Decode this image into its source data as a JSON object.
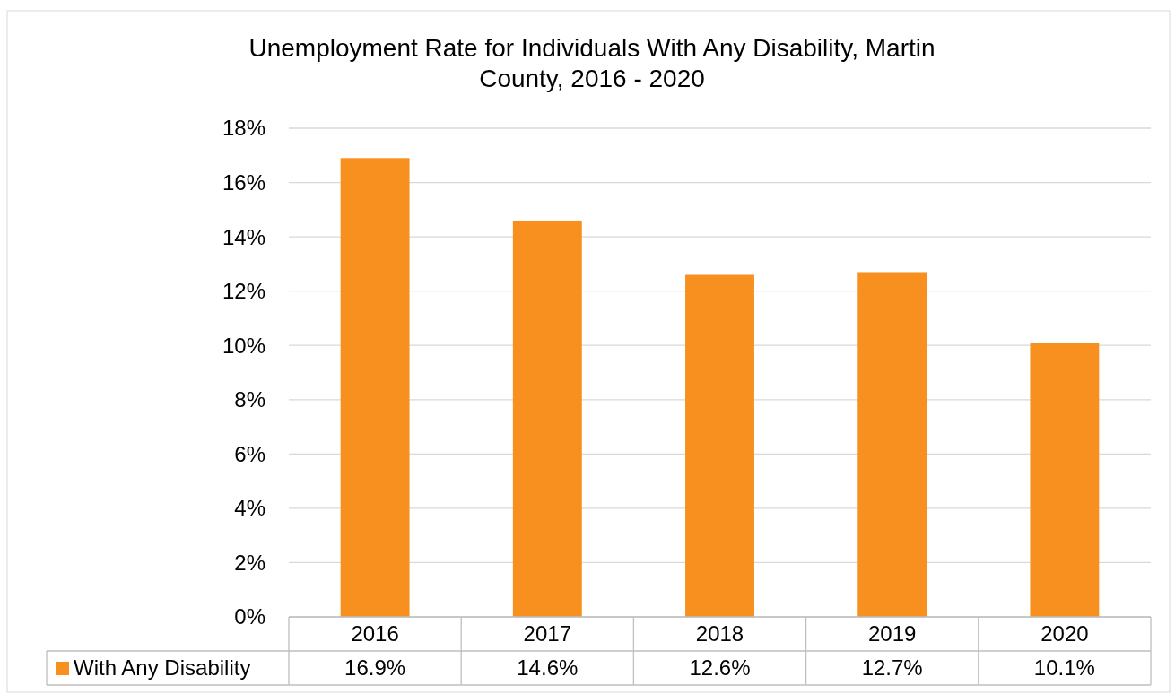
{
  "chart_data": {
    "type": "bar",
    "title": "Unemployment Rate for Individuals With Any Disability, Martin County, 2016 - 2020",
    "categories": [
      "2016",
      "2017",
      "2018",
      "2019",
      "2020"
    ],
    "series": [
      {
        "name": "With Any Disability",
        "color": "#f7901e",
        "values": [
          16.9,
          14.6,
          12.6,
          12.7,
          10.1
        ],
        "value_labels": [
          "16.9%",
          "14.6%",
          "12.6%",
          "12.7%",
          "10.1%"
        ]
      }
    ],
    "ylim": [
      0,
      18
    ],
    "yticks": [
      {
        "value": 0,
        "label": "0%"
      },
      {
        "value": 2,
        "label": "2%"
      },
      {
        "value": 4,
        "label": "4%"
      },
      {
        "value": 6,
        "label": "6%"
      },
      {
        "value": 8,
        "label": "8%"
      },
      {
        "value": 10,
        "label": "10%"
      },
      {
        "value": 12,
        "label": "12%"
      },
      {
        "value": 14,
        "label": "14%"
      },
      {
        "value": 16,
        "label": "16%"
      },
      {
        "value": 18,
        "label": "18%"
      }
    ],
    "grid": "y",
    "legend": "bottom"
  }
}
